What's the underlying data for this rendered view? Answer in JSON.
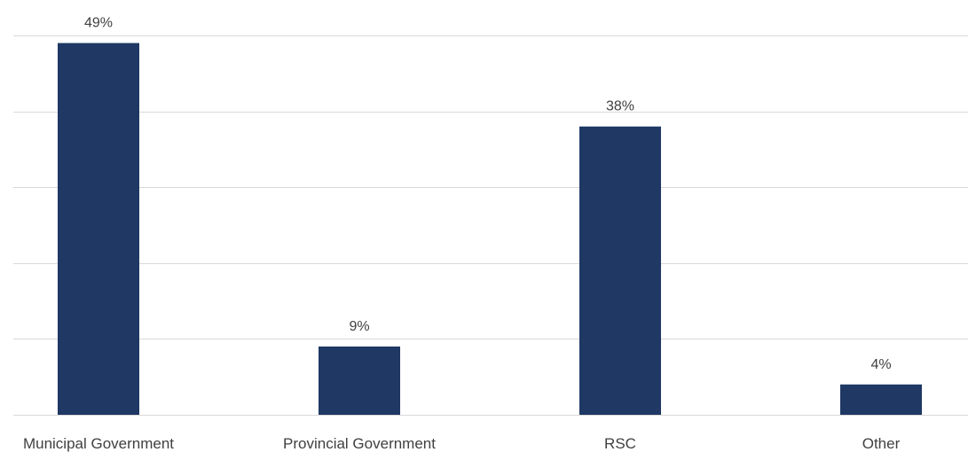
{
  "chart_data": {
    "type": "bar",
    "categories": [
      "Municipal Government",
      "Provincial Government",
      "RSC",
      "Other"
    ],
    "values": [
      49,
      9,
      38,
      4
    ],
    "data_labels": [
      "49%",
      "9%",
      "38%",
      "4%"
    ],
    "title": "",
    "xlabel": "",
    "ylabel": "",
    "ylim": [
      0,
      50
    ],
    "y_gridlines": [
      0,
      10,
      20,
      30,
      40,
      50
    ],
    "grid": true,
    "legend": "none",
    "bar_color": "#1f3864"
  }
}
